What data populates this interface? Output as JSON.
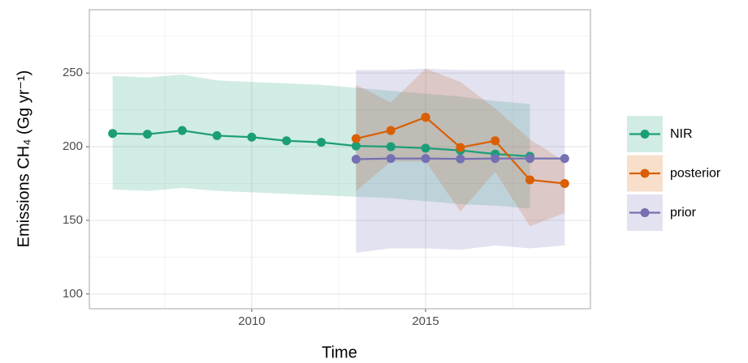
{
  "chart_data": {
    "type": "line",
    "x_label": "Time",
    "y_label": "Emissions CH₄ (Gg yr⁻¹)",
    "xlim": [
      2005.33,
      2019.74
    ],
    "ylim": [
      90,
      293
    ],
    "xticks": [
      2010,
      2015
    ],
    "yticks": [
      100,
      150,
      200,
      250
    ],
    "xminor": [
      2007.5,
      2012.5,
      2017.5
    ],
    "yminor": [
      125,
      175,
      225,
      275
    ],
    "grid": true,
    "legend": "right",
    "series": [
      {
        "name": "NIR",
        "color": "#1b9e77",
        "x": [
          2006,
          2007,
          2008,
          2009,
          2010,
          2011,
          2012,
          2013,
          2014,
          2015,
          2016,
          2017,
          2018
        ],
        "values": [
          209,
          208.5,
          211,
          207.5,
          206.5,
          204,
          203,
          200.5,
          200,
          199,
          197.5,
          195,
          193.5
        ],
        "upper": [
          248,
          247,
          249,
          245,
          244,
          243,
          242,
          240,
          238,
          236,
          234,
          231,
          229
        ],
        "lower": [
          171,
          170,
          172,
          170,
          169,
          168,
          167,
          166,
          165,
          163,
          161,
          160,
          158
        ]
      },
      {
        "name": "posterior",
        "color": "#d95f02",
        "x": [
          2013,
          2014,
          2015,
          2016,
          2017,
          2018,
          2019
        ],
        "values": [
          205.5,
          211,
          220,
          199.5,
          204,
          177.5,
          175
        ],
        "upper": [
          242,
          230,
          253,
          244,
          226,
          205,
          190
        ],
        "lower": [
          170,
          190,
          190,
          156,
          183,
          146,
          155
        ]
      },
      {
        "name": "prior",
        "color": "#7570b3",
        "x": [
          2013,
          2014,
          2015,
          2016,
          2017,
          2018,
          2019
        ],
        "values": [
          191.5,
          192,
          192,
          191.7,
          192,
          192,
          192
        ],
        "upper": [
          252,
          252,
          253,
          252,
          252,
          252,
          252
        ],
        "lower": [
          128,
          131,
          131,
          130,
          133,
          131,
          133
        ]
      }
    ]
  }
}
